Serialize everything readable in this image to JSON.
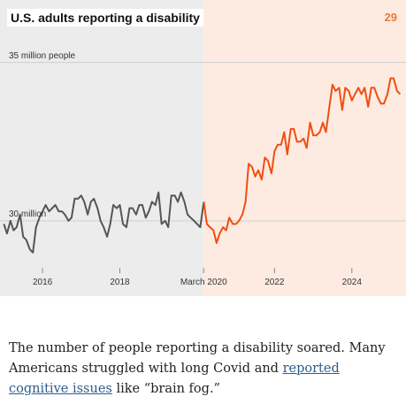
{
  "header": {
    "title": "U.S. adults reporting a disability",
    "page_number": "29"
  },
  "colors": {
    "pre_pandemic_line": "#555555",
    "post_pandemic_line": "#f04e0f",
    "pre_pandemic_bg": "#ececec",
    "post_pandemic_bg": "#fdebe2",
    "page_number": "#f07a35"
  },
  "caption": {
    "before_link": "The number of people reporting a disability soared. Many Americans struggled with long Covid and ",
    "link_text": "reported cognitive issues",
    "after_link": " like “brain fog.”"
  },
  "chart_data": {
    "type": "line",
    "title": "U.S. adults reporting a disability",
    "y_tick_labels": [
      "35 million people",
      "30 million"
    ],
    "y_ticks": [
      35,
      30
    ],
    "ylim": [
      28.6,
      35.8
    ],
    "x_tick_labels": [
      "2016",
      "2018",
      "March 2020",
      "2022",
      "2024"
    ],
    "x_ticks": [
      2016.0,
      2018.0,
      2020.167,
      2022.0,
      2024.0
    ],
    "xlim": [
      2014.9,
      2025.4
    ],
    "shaded_region_start": 2020.167,
    "grid": "horizontal at labeled values",
    "series": [
      {
        "segment": "before March 2020",
        "x": [
          2015.0,
          2015.08,
          2015.17,
          2015.25,
          2015.33,
          2015.42,
          2015.5,
          2015.58,
          2015.67,
          2015.75,
          2015.83,
          2015.92,
          2016.0,
          2016.08,
          2016.17,
          2016.25,
          2016.33,
          2016.42,
          2016.5,
          2016.58,
          2016.67,
          2016.75,
          2016.83,
          2016.92,
          2017.0,
          2017.08,
          2017.17,
          2017.25,
          2017.33,
          2017.42,
          2017.5,
          2017.58,
          2017.67,
          2017.75,
          2017.83,
          2017.92,
          2018.0,
          2018.08,
          2018.17,
          2018.25,
          2018.33,
          2018.42,
          2018.5,
          2018.58,
          2018.67,
          2018.75,
          2018.83,
          2018.92,
          2019.0,
          2019.08,
          2019.17,
          2019.25,
          2019.33,
          2019.42,
          2019.5,
          2019.58,
          2019.67,
          2019.75,
          2019.83,
          2019.92,
          2020.0,
          2020.08,
          2020.17
        ],
        "y": [
          29.9,
          29.6,
          30.0,
          29.7,
          29.8,
          30.2,
          29.5,
          29.4,
          29.1,
          29.0,
          29.8,
          30.1,
          30.3,
          30.5,
          30.3,
          30.4,
          30.5,
          30.3,
          30.3,
          30.2,
          30.0,
          30.1,
          30.7,
          30.7,
          30.8,
          30.6,
          30.2,
          30.6,
          30.7,
          30.4,
          30.0,
          29.8,
          29.5,
          29.9,
          30.5,
          30.4,
          30.5,
          29.9,
          29.8,
          30.4,
          30.4,
          30.2,
          30.5,
          30.5,
          30.1,
          30.3,
          30.6,
          30.5,
          30.9,
          29.9,
          30.0,
          29.8,
          30.8,
          30.8,
          30.6,
          30.9,
          30.6,
          30.2,
          30.1,
          30.0,
          29.9,
          29.8,
          30.6
        ]
      },
      {
        "segment": "after March 2020",
        "x": [
          2020.17,
          2020.25,
          2020.33,
          2020.42,
          2020.5,
          2020.58,
          2020.67,
          2020.75,
          2020.83,
          2020.92,
          2021.0,
          2021.08,
          2021.17,
          2021.25,
          2021.33,
          2021.42,
          2021.5,
          2021.58,
          2021.67,
          2021.75,
          2021.83,
          2021.92,
          2022.0,
          2022.08,
          2022.17,
          2022.25,
          2022.33,
          2022.42,
          2022.5,
          2022.58,
          2022.67,
          2022.75,
          2022.83,
          2022.92,
          2023.0,
          2023.08,
          2023.17,
          2023.25,
          2023.33,
          2023.42,
          2023.5,
          2023.58,
          2023.67,
          2023.75,
          2023.83,
          2023.92,
          2024.0,
          2024.08,
          2024.17,
          2024.25,
          2024.33,
          2024.42,
          2024.5,
          2024.58,
          2024.67,
          2024.75,
          2024.83,
          2024.92,
          2025.0,
          2025.08,
          2025.17,
          2025.25
        ],
        "y": [
          30.6,
          29.9,
          29.8,
          29.7,
          29.3,
          29.6,
          29.8,
          29.7,
          30.1,
          29.9,
          29.9,
          30.0,
          30.2,
          30.6,
          31.8,
          31.7,
          31.4,
          31.6,
          31.3,
          32.0,
          31.9,
          31.5,
          32.2,
          32.4,
          32.4,
          32.8,
          32.1,
          32.9,
          32.9,
          32.5,
          32.5,
          32.6,
          32.3,
          33.1,
          32.7,
          32.7,
          32.8,
          33.1,
          32.8,
          33.6,
          34.3,
          34.1,
          34.2,
          33.5,
          34.2,
          34.1,
          33.8,
          34.0,
          34.2,
          34.0,
          34.2,
          33.6,
          34.2,
          34.2,
          33.9,
          33.7,
          33.7,
          34.0,
          34.5,
          34.5,
          34.1,
          34.0
        ]
      }
    ]
  }
}
